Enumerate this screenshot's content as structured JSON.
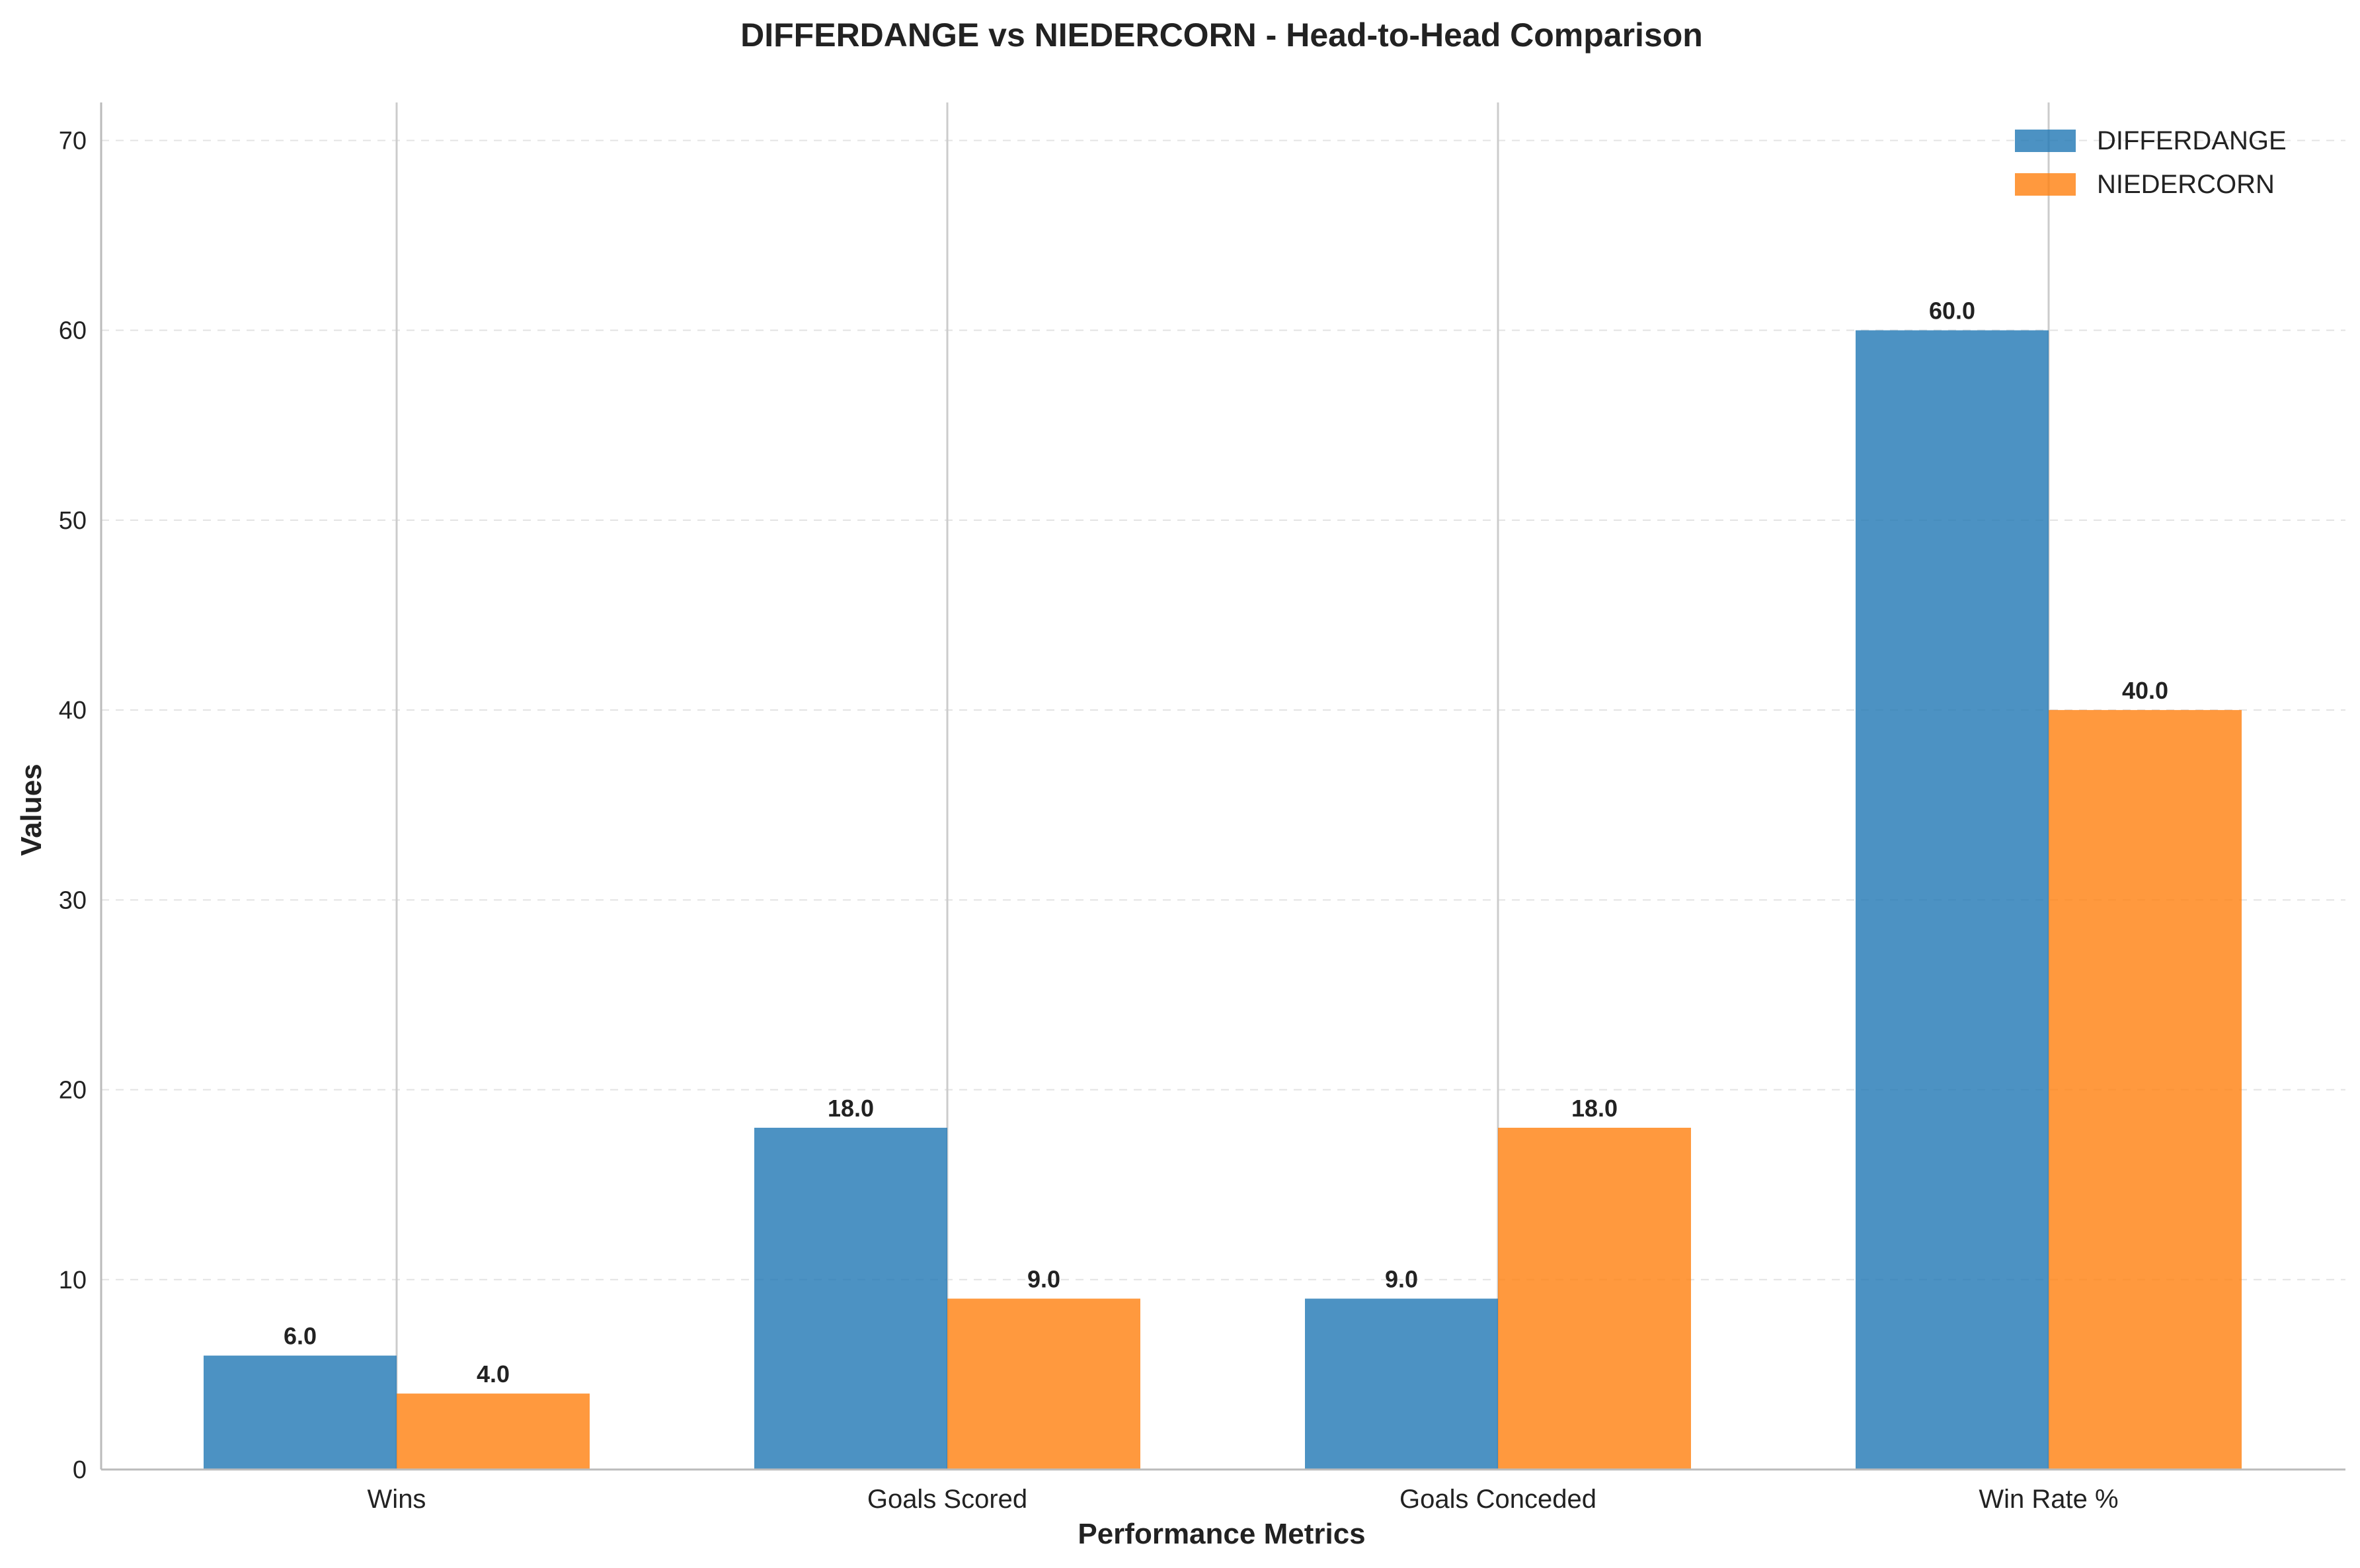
{
  "chart_data": {
    "type": "bar",
    "title": "DIFFERDANGE vs NIEDERCORN - Head-to-Head Comparison",
    "xlabel": "Performance Metrics",
    "ylabel": "Values",
    "ylim": [
      0,
      72
    ],
    "yticks": [
      0,
      10,
      20,
      30,
      40,
      50,
      60,
      70
    ],
    "grid": "y-dashed",
    "legend_position": "top-right",
    "categories": [
      "Wins",
      "Goals Scored",
      "Goals Conceded",
      "Win Rate %"
    ],
    "series": [
      {
        "name": "DIFFERDANGE",
        "color": "#1f77b4",
        "values": [
          6.0,
          18.0,
          9.0,
          60.0
        ],
        "labels": [
          "6.0",
          "18.0",
          "9.0",
          "60.0"
        ]
      },
      {
        "name": "NIEDERCORN",
        "color": "#ff7f0e",
        "values": [
          4.0,
          9.0,
          18.0,
          40.0
        ],
        "labels": [
          "4.0",
          "9.0",
          "18.0",
          "40.0"
        ]
      }
    ]
  }
}
